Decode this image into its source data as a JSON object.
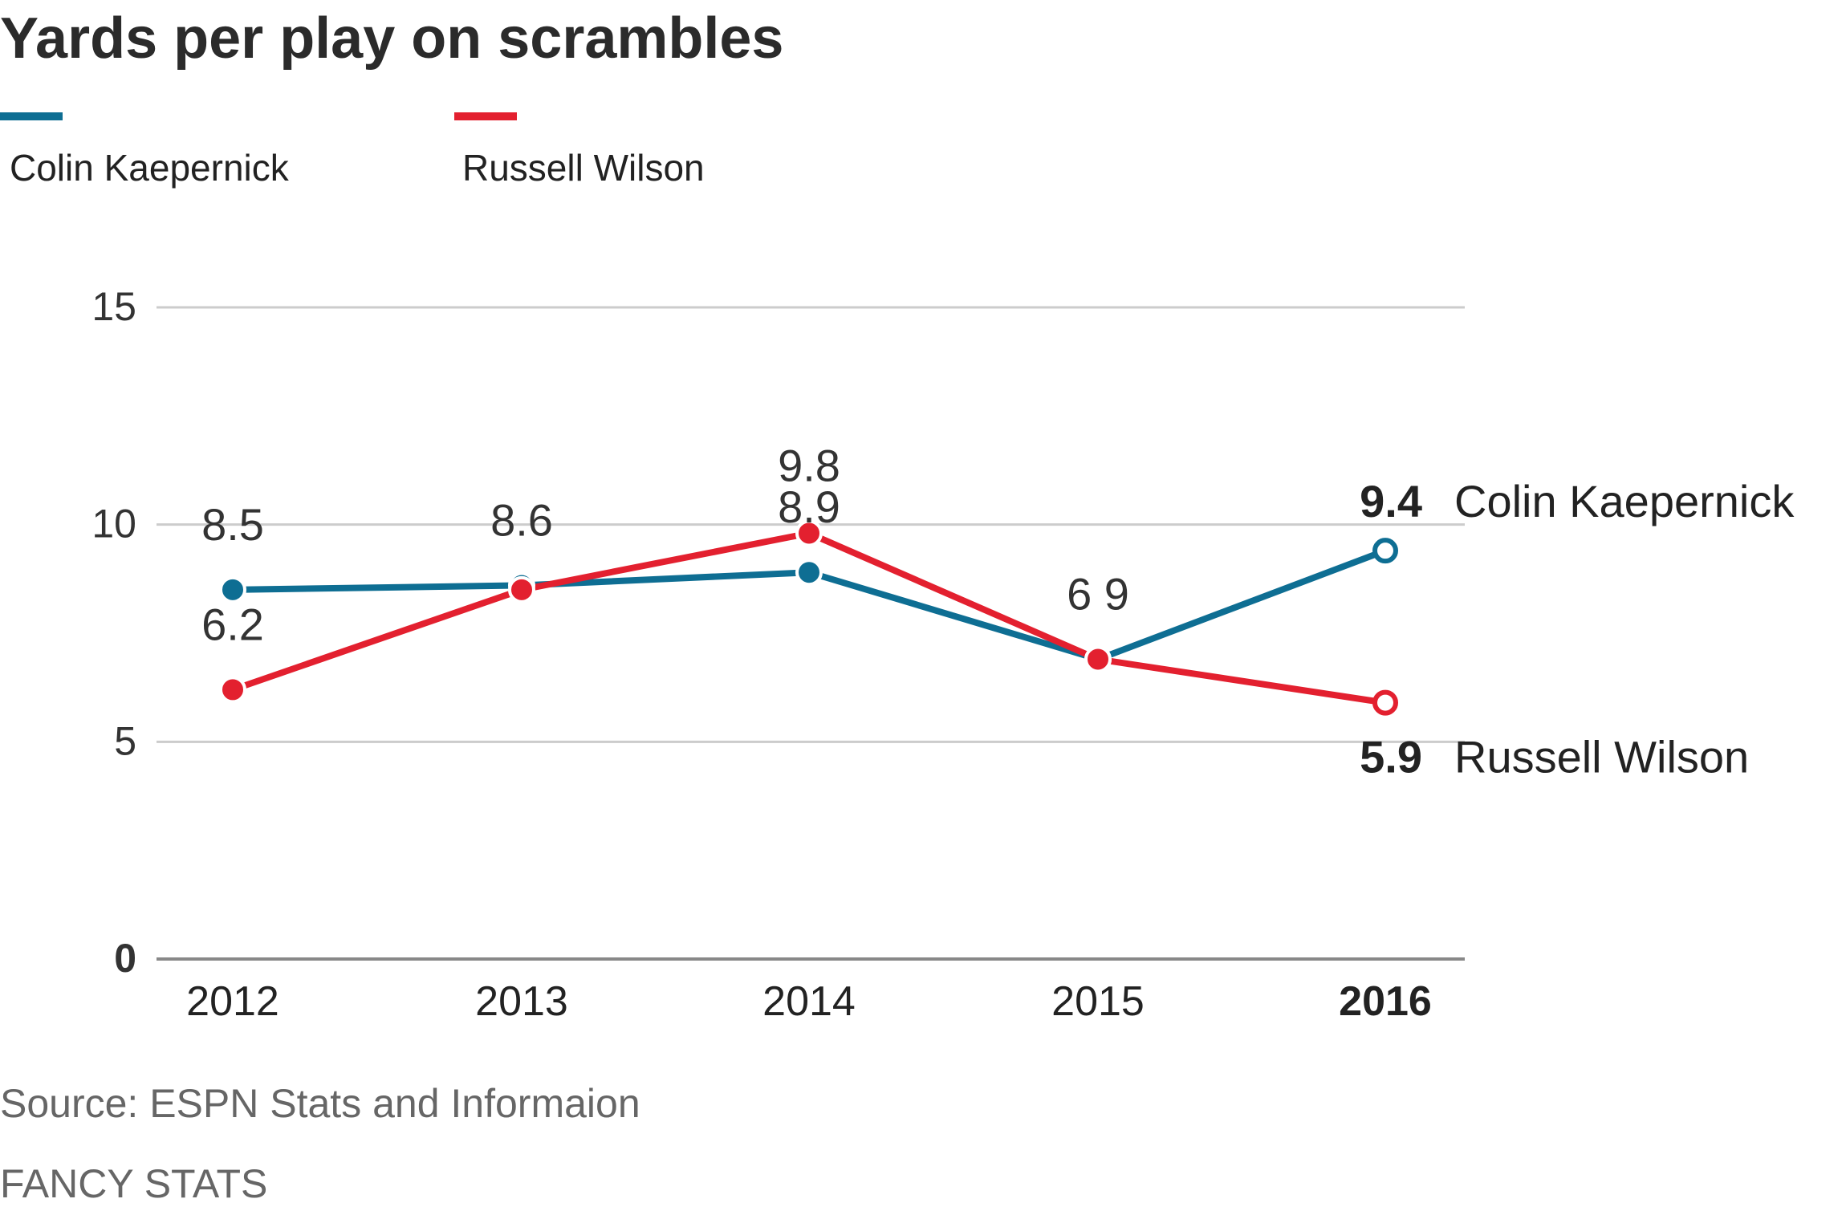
{
  "title": "Yards per play on scrambles",
  "colors": {
    "kaepernick": "#0e6e93",
    "wilson": "#e3202f",
    "grid": "#cccccc",
    "baseline": "#888888"
  },
  "legend": [
    {
      "label": "Colin Kaepernick",
      "color": "#0e6e93"
    },
    {
      "label": "Russell Wilson",
      "color": "#e3202f"
    }
  ],
  "chart_data": {
    "type": "line",
    "x": [
      "2012",
      "2013",
      "2014",
      "2015",
      "2016"
    ],
    "ylim": [
      0,
      15
    ],
    "yticks": [
      "0",
      "5",
      "10",
      "15"
    ],
    "grid": true,
    "series": [
      {
        "name": "Colin Kaepernick",
        "values": [
          8.5,
          8.6,
          8.9,
          6.9,
          9.4
        ],
        "labels": [
          "8.5",
          "8.6",
          "8.9",
          "6 9",
          "9.4"
        ]
      },
      {
        "name": "Russell Wilson",
        "values": [
          6.2,
          8.5,
          9.8,
          6.9,
          5.9
        ],
        "labels": [
          "6.2",
          "",
          "9.8",
          "",
          "5.9"
        ]
      }
    ],
    "end_labels": [
      "Colin Kaepernick",
      "Russell Wilson"
    ]
  },
  "source": "Source: ESPN Stats and Informaion",
  "credit": "FANCY STATS"
}
